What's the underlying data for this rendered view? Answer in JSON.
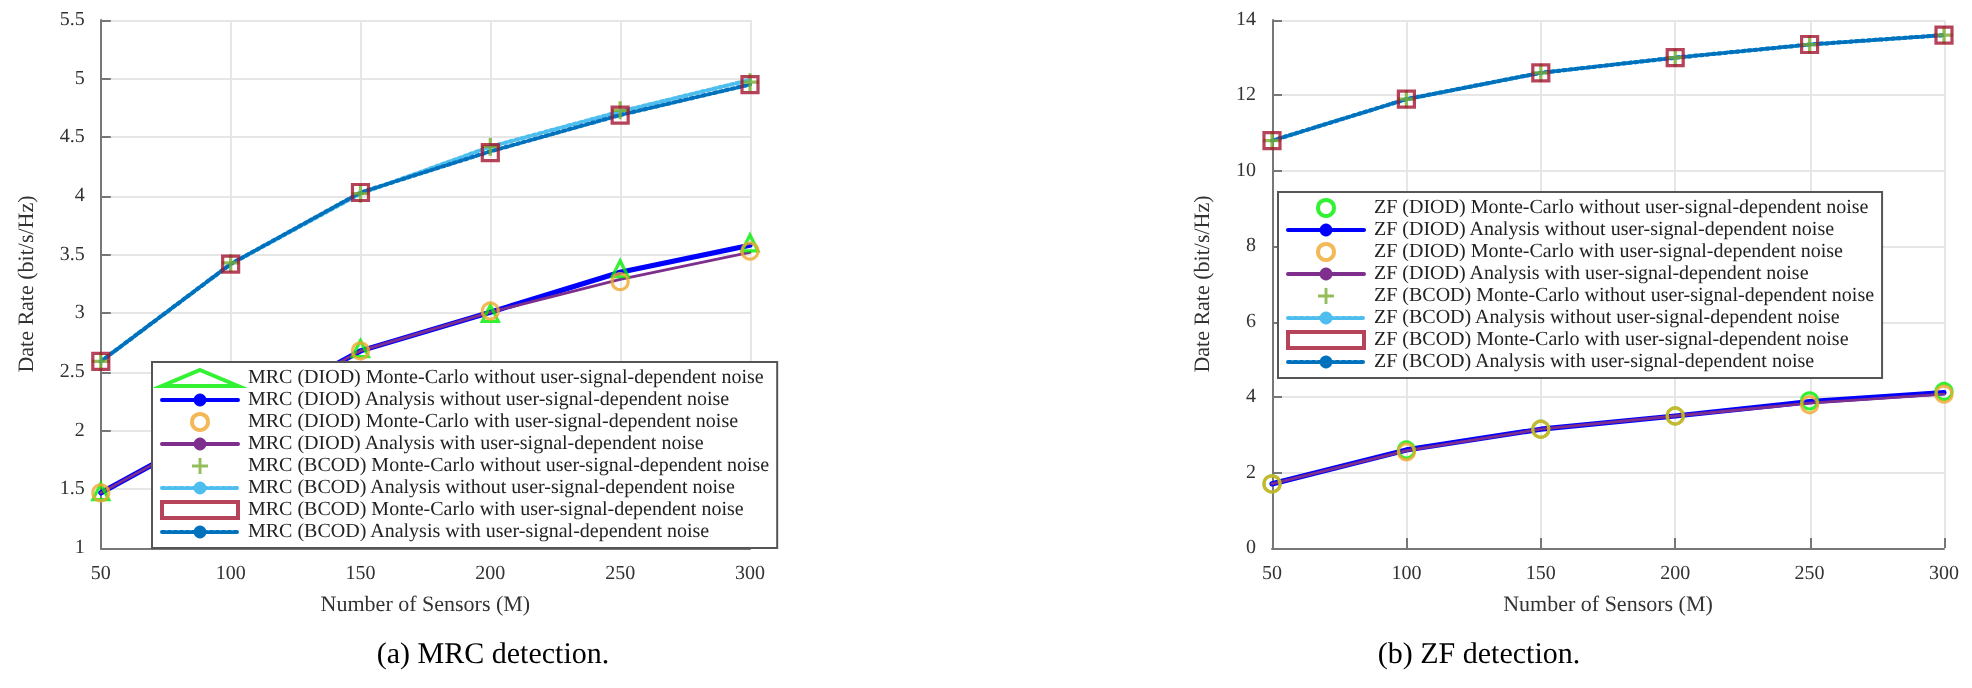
{
  "chart_data": [
    {
      "type": "line",
      "title": "(a) MRC detection.",
      "xlabel": "Number of Sensors (M)",
      "ylabel": "Date Rate (bit/s/Hz)",
      "x": [
        50,
        100,
        150,
        200,
        250,
        300
      ],
      "xlim": [
        50,
        300
      ],
      "xticks": [
        50,
        100,
        150,
        200,
        250,
        300
      ],
      "ylim": [
        1,
        5.5
      ],
      "yticks": [
        1,
        1.5,
        2,
        2.5,
        3,
        3.5,
        4,
        4.5,
        5,
        5.5
      ],
      "grid": true,
      "legend": "bottom right",
      "series": [
        {
          "name": "MRC (DIOD) Monte-Carlo without user-signal-dependent noise",
          "type": "scatter",
          "marker": "triangle",
          "color": "#00ee00",
          "values": [
            1.48,
            null,
            2.7,
            3.0,
            3.38,
            3.6
          ]
        },
        {
          "name": "MRC (DIOD) Analysis without user-signal-dependent noise",
          "type": "line",
          "line_style": "solid",
          "color": "#0000ff",
          "values": [
            1.47,
            null,
            2.68,
            3.01,
            3.35,
            3.58
          ]
        },
        {
          "name": "MRC (DIOD) Monte-Carlo with user-signal-dependent noise",
          "type": "scatter",
          "marker": "circle",
          "color": "#f0a830",
          "values": [
            1.47,
            null,
            2.68,
            3.02,
            3.27,
            3.53
          ]
        },
        {
          "name": "MRC (DIOD) Analysis with user-signal-dependent noise",
          "type": "line",
          "line_style": "solid",
          "color": "#7e2f8e",
          "values": [
            1.47,
            null,
            2.68,
            3.01,
            3.29,
            3.52
          ]
        },
        {
          "name": "MRC (BCOD) Monte-Carlo without user-signal-dependent noise",
          "type": "scatter",
          "marker": "cross",
          "color": "#77ac30",
          "values": [
            2.59,
            3.43,
            4.02,
            4.42,
            4.73,
            4.97
          ]
        },
        {
          "name": "MRC (BCOD) Analysis without user-signal-dependent noise",
          "type": "line",
          "line_style": "dotted",
          "color": "#4dbeee",
          "values": [
            2.59,
            3.42,
            4.02,
            4.42,
            4.72,
            4.99
          ]
        },
        {
          "name": "MRC (BCOD) Monte-Carlo with user-signal-dependent noise",
          "type": "scatter",
          "marker": "square",
          "color": "#a2142f",
          "values": [
            2.59,
            3.42,
            4.03,
            4.37,
            4.69,
            4.95
          ]
        },
        {
          "name": "MRC (BCOD) Analysis with user-signal-dependent noise",
          "type": "line",
          "line_style": "dotted",
          "color": "#0072bd",
          "values": [
            2.59,
            3.42,
            4.03,
            4.38,
            4.69,
            4.95
          ]
        }
      ]
    },
    {
      "type": "line",
      "title": "(b) ZF detection.",
      "xlabel": "Number of Sensors (M)",
      "ylabel": "Date Rate (bit/s/Hz)",
      "x": [
        50,
        100,
        150,
        200,
        250,
        300
      ],
      "xlim": [
        50,
        300
      ],
      "xticks": [
        50,
        100,
        150,
        200,
        250,
        300
      ],
      "ylim": [
        0,
        14
      ],
      "yticks": [
        0,
        2,
        4,
        6,
        8,
        10,
        12,
        14
      ],
      "grid": true,
      "legend": "right",
      "series": [
        {
          "name": "ZF (DIOD) Monte-Carlo without user-signal-dependent noise",
          "type": "scatter",
          "marker": "circle",
          "color": "#00ee00",
          "values": [
            1.7,
            2.6,
            3.15,
            3.5,
            3.9,
            4.15
          ]
        },
        {
          "name": "ZF (DIOD) Analysis without user-signal-dependent noise",
          "type": "line",
          "line_style": "solid",
          "color": "#0000ff",
          "values": [
            1.7,
            2.6,
            3.15,
            3.5,
            3.88,
            4.12
          ]
        },
        {
          "name": "ZF (DIOD) Monte-Carlo with user-signal-dependent noise",
          "type": "scatter",
          "marker": "circle",
          "color": "#f0a830",
          "values": [
            1.7,
            2.55,
            3.15,
            3.5,
            3.8,
            4.08
          ]
        },
        {
          "name": "ZF (DIOD) Analysis with user-signal-dependent noise",
          "type": "line",
          "line_style": "solid",
          "color": "#7e2f8e",
          "values": [
            1.7,
            2.58,
            3.15,
            3.5,
            3.84,
            4.08
          ]
        },
        {
          "name": "ZF (BCOD) Monte-Carlo without user-signal-dependent noise",
          "type": "scatter",
          "marker": "cross",
          "color": "#77ac30",
          "values": [
            10.8,
            11.9,
            12.6,
            13.0,
            13.35,
            13.6
          ]
        },
        {
          "name": "ZF (BCOD) Analysis without user-signal-dependent noise",
          "type": "line",
          "line_style": "dotted",
          "color": "#4dbeee",
          "values": [
            10.8,
            11.9,
            12.6,
            13.0,
            13.35,
            13.6
          ]
        },
        {
          "name": "ZF (BCOD) Monte-Carlo with user-signal-dependent noise",
          "type": "scatter",
          "marker": "square",
          "color": "#a2142f",
          "values": [
            10.8,
            11.9,
            12.6,
            13.0,
            13.35,
            13.6
          ]
        },
        {
          "name": "ZF (BCOD) Analysis with user-signal-dependent noise",
          "type": "line",
          "line_style": "dotted",
          "color": "#0072bd",
          "values": [
            10.8,
            11.9,
            12.6,
            13.0,
            13.35,
            13.6
          ]
        }
      ]
    }
  ]
}
